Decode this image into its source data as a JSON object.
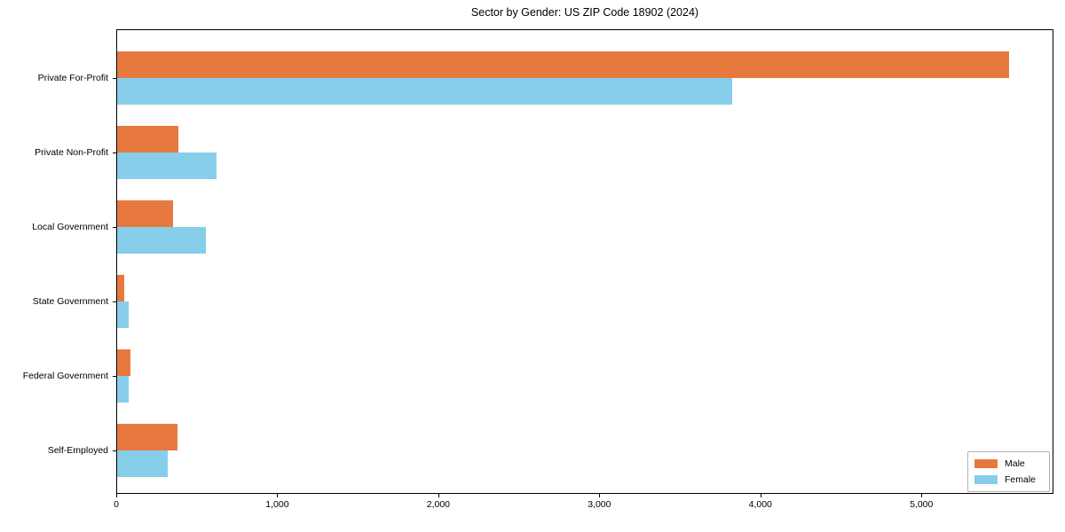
{
  "chart_data": {
    "type": "bar",
    "orientation": "horizontal",
    "title": "Sector by Gender: US ZIP Code 18902 (2024)",
    "categories": [
      "Private For-Profit",
      "Private Non-Profit",
      "Local Government",
      "State Government",
      "Federal Government",
      "Self-Employed"
    ],
    "series": [
      {
        "name": "Male",
        "color": "#e8793e",
        "values": [
          5540,
          380,
          345,
          45,
          80,
          375
        ]
      },
      {
        "name": "Female",
        "color": "#87ceeb",
        "values": [
          3820,
          620,
          550,
          70,
          70,
          315
        ]
      }
    ],
    "xlabel": "",
    "ylabel": "",
    "xlim": [
      0,
      5820
    ],
    "xticks": [
      0,
      1000,
      2000,
      3000,
      4000,
      5000
    ],
    "xtick_labels": [
      "0",
      "1,000",
      "2,000",
      "3,000",
      "4,000",
      "5,000"
    ],
    "grid": false,
    "legend": {
      "position": "lower right",
      "entries": [
        {
          "label": "Male",
          "color": "#e8793e"
        },
        {
          "label": "Female",
          "color": "#87ceeb"
        }
      ]
    },
    "colors": {
      "background": "#ffffff",
      "spine": "#000000",
      "legend_border": "#b3b3b3"
    }
  }
}
